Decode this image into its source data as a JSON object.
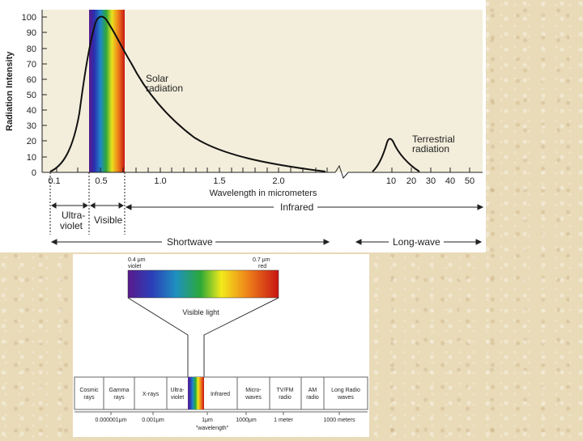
{
  "top": {
    "ylabel": "Radiation Intensity",
    "yticks": [
      "100",
      "90",
      "80",
      "70",
      "60",
      "50",
      "40",
      "30",
      "20",
      "10",
      "0"
    ],
    "xlabel": "Wavelength in micrometers",
    "xticks_left": [
      "0.1",
      "0.5",
      "1.0",
      "1.5",
      "2.0"
    ],
    "xticks_right": [
      "10",
      "20",
      "30",
      "40",
      "50"
    ],
    "solar_label": [
      "Solar",
      "radiation"
    ],
    "terrestrial_label": [
      "Terrestrial",
      "radiation"
    ],
    "bands": {
      "ultraviolet": [
        "Ultra-",
        "violet"
      ],
      "visible": "Visible",
      "infrared": "Infrared",
      "shortwave": "Shortwave",
      "longwave": "Long-wave"
    }
  },
  "bottom": {
    "left_label": [
      "0.4 μm",
      "violet"
    ],
    "right_label": [
      "0.7 μm",
      "red"
    ],
    "visible_light": "Visible light",
    "cells": [
      [
        "Cosmic",
        "rays"
      ],
      [
        "Gamma",
        "rays"
      ],
      [
        "X-rays"
      ],
      [
        "Ultra-",
        "violet"
      ],
      [],
      [
        "Infrared"
      ],
      [
        "Micro-",
        "waves"
      ],
      [
        "TV/FM",
        "radio"
      ],
      [
        "AM",
        "radio"
      ],
      [
        "Long Radio",
        "waves"
      ]
    ],
    "scale": [
      "0.000001μm",
      "0.001μm",
      "1μm",
      "1000μm",
      "1 meter",
      "1000 meters"
    ],
    "caption": "\"wavelength\""
  },
  "colors": {
    "plot_bg": "#f3eedb",
    "curve": "#111111",
    "page_bg": "#e9dbb8"
  }
}
